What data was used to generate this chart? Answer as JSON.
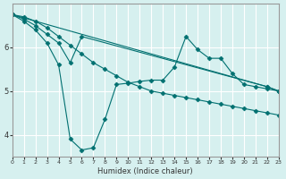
{
  "xlabel": "Humidex (Indice chaleur)",
  "ylabel": "",
  "bg_color": "#d6f0ef",
  "line_color": "#007070",
  "grid_color": "#ffffff",
  "xlim": [
    0,
    23
  ],
  "ylim": [
    3.5,
    7.0
  ],
  "yticks": [
    4,
    5,
    6
  ],
  "xticks": [
    0,
    1,
    2,
    3,
    4,
    5,
    6,
    7,
    8,
    9,
    10,
    11,
    12,
    13,
    14,
    15,
    16,
    17,
    18,
    19,
    20,
    21,
    22,
    23
  ],
  "line1_x": [
    0,
    1,
    2,
    3,
    4,
    5,
    6,
    22,
    23
  ],
  "line1_y": [
    6.75,
    6.65,
    6.5,
    6.3,
    6.1,
    5.65,
    6.25,
    5.1,
    5.0
  ],
  "line2_x": [
    0,
    1,
    2,
    3,
    4,
    5,
    6,
    7,
    8,
    9,
    10,
    11,
    12,
    13,
    14,
    15,
    16,
    17,
    18,
    19,
    20,
    21,
    22,
    23
  ],
  "line2_y": [
    6.75,
    6.7,
    6.6,
    6.45,
    6.25,
    6.05,
    5.85,
    5.65,
    5.5,
    5.35,
    5.2,
    5.1,
    5.0,
    4.95,
    4.9,
    4.85,
    4.8,
    4.75,
    4.7,
    4.65,
    4.6,
    4.55,
    4.5,
    4.45
  ],
  "line3_x": [
    0,
    1,
    2,
    3,
    4,
    5,
    6,
    7,
    8,
    9,
    10,
    11,
    12,
    13,
    14,
    15,
    16,
    17,
    18,
    19,
    20,
    21,
    22,
    23
  ],
  "line3_y": [
    6.75,
    6.6,
    6.4,
    6.1,
    5.6,
    3.9,
    3.65,
    3.7,
    4.35,
    5.15,
    5.18,
    5.22,
    5.25,
    5.25,
    5.55,
    6.25,
    5.95,
    5.75,
    5.75,
    5.4,
    5.15,
    5.1,
    5.05,
    5.0
  ],
  "line4_x": [
    0,
    22,
    23
  ],
  "line4_y": [
    6.75,
    5.1,
    5.0
  ]
}
